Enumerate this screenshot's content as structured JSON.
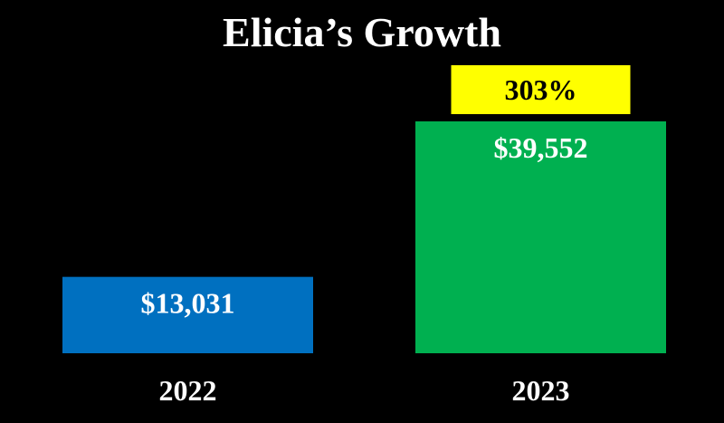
{
  "chart_data": {
    "type": "bar",
    "title": "Elicia’s Growth",
    "categories": [
      "2022",
      "2023"
    ],
    "values": [
      13031,
      39552
    ],
    "value_labels": [
      "$13,031",
      "$39,552"
    ],
    "bar_colors": [
      "#0070C0",
      "#00B050"
    ],
    "annotation": {
      "category": "2023",
      "text": "303%",
      "color": "#FFFF00"
    },
    "background": "#000000",
    "grid": false,
    "legend": "none"
  }
}
